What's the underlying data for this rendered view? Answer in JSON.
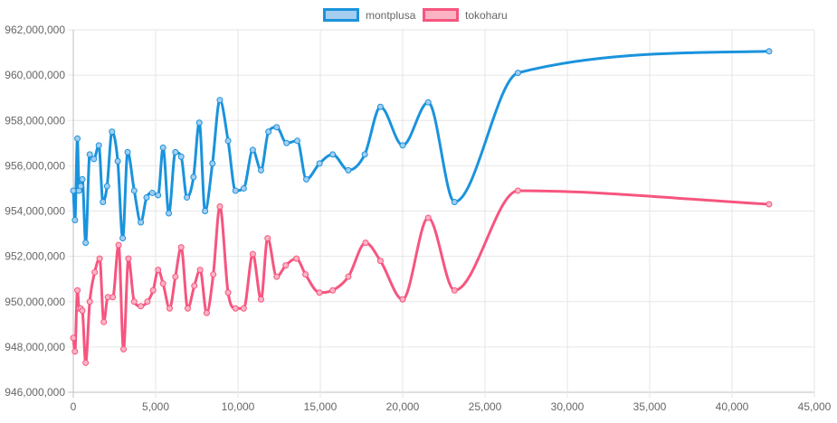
{
  "chart_data": {
    "type": "line",
    "xlim": [
      0,
      45000
    ],
    "ylim": [
      946000000,
      962000000
    ],
    "x_ticks": [
      0,
      5000,
      10000,
      15000,
      20000,
      25000,
      30000,
      35000,
      40000,
      45000
    ],
    "y_ticks": [
      946000000,
      948000000,
      950000000,
      952000000,
      954000000,
      956000000,
      958000000,
      960000000,
      962000000
    ],
    "x_tick_labels": [
      "0",
      "5,000",
      "10,000",
      "15,000",
      "20,000",
      "25,000",
      "30,000",
      "35,000",
      "40,000",
      "45,000"
    ],
    "y_tick_labels": [
      "946,000,000",
      "948,000,000",
      "950,000,000",
      "952,000,000",
      "954,000,000",
      "956,000,000",
      "958,000,000",
      "960,000,000",
      "962,000,000"
    ],
    "grid": true,
    "legend_position": "top",
    "series": [
      {
        "name": "montplusa",
        "color": "#1a93dc",
        "fill": "#a4cdf0",
        "points": [
          [
            0,
            954900000
          ],
          [
            100,
            953600000
          ],
          [
            250,
            957200000
          ],
          [
            350,
            954900000
          ],
          [
            450,
            955100000
          ],
          [
            550,
            955400000
          ],
          [
            750,
            952600000
          ],
          [
            1000,
            956500000
          ],
          [
            1250,
            956300000
          ],
          [
            1550,
            956900000
          ],
          [
            1800,
            954400000
          ],
          [
            2050,
            955100000
          ],
          [
            2350,
            957500000
          ],
          [
            2700,
            956200000
          ],
          [
            3000,
            952800000
          ],
          [
            3300,
            956600000
          ],
          [
            3700,
            954900000
          ],
          [
            4100,
            953500000
          ],
          [
            4450,
            954600000
          ],
          [
            4800,
            954800000
          ],
          [
            5150,
            954700000
          ],
          [
            5450,
            956800000
          ],
          [
            5800,
            953900000
          ],
          [
            6200,
            956600000
          ],
          [
            6550,
            956400000
          ],
          [
            6900,
            954600000
          ],
          [
            7300,
            955500000
          ],
          [
            7650,
            957900000
          ],
          [
            8000,
            954000000
          ],
          [
            8450,
            956100000
          ],
          [
            8900,
            958900000
          ],
          [
            9400,
            957100000
          ],
          [
            9850,
            954900000
          ],
          [
            10350,
            955000000
          ],
          [
            10900,
            956700000
          ],
          [
            11400,
            955800000
          ],
          [
            11850,
            957500000
          ],
          [
            12350,
            957700000
          ],
          [
            12950,
            957000000
          ],
          [
            13600,
            957100000
          ],
          [
            14150,
            955400000
          ],
          [
            14950,
            956100000
          ],
          [
            15750,
            956500000
          ],
          [
            16700,
            955800000
          ],
          [
            17700,
            956500000
          ],
          [
            18650,
            958600000
          ],
          [
            20000,
            956900000
          ],
          [
            21550,
            958800000
          ],
          [
            23150,
            954400000
          ],
          [
            27000,
            960100000
          ],
          [
            42250,
            961050000
          ]
        ]
      },
      {
        "name": "tokoharu",
        "color": "#f6557f",
        "fill": "#fbb3c4",
        "points": [
          [
            0,
            948400000
          ],
          [
            100,
            947800000
          ],
          [
            250,
            950500000
          ],
          [
            350,
            949700000
          ],
          [
            450,
            949700000
          ],
          [
            550,
            949600000
          ],
          [
            750,
            947300000
          ],
          [
            1000,
            950000000
          ],
          [
            1300,
            951300000
          ],
          [
            1600,
            951900000
          ],
          [
            1850,
            949100000
          ],
          [
            2100,
            950200000
          ],
          [
            2400,
            950200000
          ],
          [
            2750,
            952500000
          ],
          [
            3050,
            947900000
          ],
          [
            3350,
            951900000
          ],
          [
            3700,
            950000000
          ],
          [
            4100,
            949800000
          ],
          [
            4500,
            950000000
          ],
          [
            4850,
            950500000
          ],
          [
            5150,
            951400000
          ],
          [
            5450,
            950800000
          ],
          [
            5850,
            949700000
          ],
          [
            6200,
            951100000
          ],
          [
            6550,
            952400000
          ],
          [
            6950,
            949700000
          ],
          [
            7350,
            950700000
          ],
          [
            7700,
            951400000
          ],
          [
            8100,
            949500000
          ],
          [
            8500,
            951200000
          ],
          [
            8900,
            954200000
          ],
          [
            9400,
            950400000
          ],
          [
            9850,
            949700000
          ],
          [
            10350,
            949700000
          ],
          [
            10900,
            952100000
          ],
          [
            11400,
            950100000
          ],
          [
            11800,
            952800000
          ],
          [
            12350,
            951100000
          ],
          [
            12900,
            951600000
          ],
          [
            13550,
            951900000
          ],
          [
            14100,
            951200000
          ],
          [
            14950,
            950400000
          ],
          [
            15750,
            950500000
          ],
          [
            16700,
            951100000
          ],
          [
            17750,
            952600000
          ],
          [
            18650,
            951800000
          ],
          [
            20000,
            950100000
          ],
          [
            21550,
            953700000
          ],
          [
            23150,
            950500000
          ],
          [
            27000,
            954900000
          ],
          [
            42250,
            954300000
          ]
        ]
      }
    ]
  }
}
